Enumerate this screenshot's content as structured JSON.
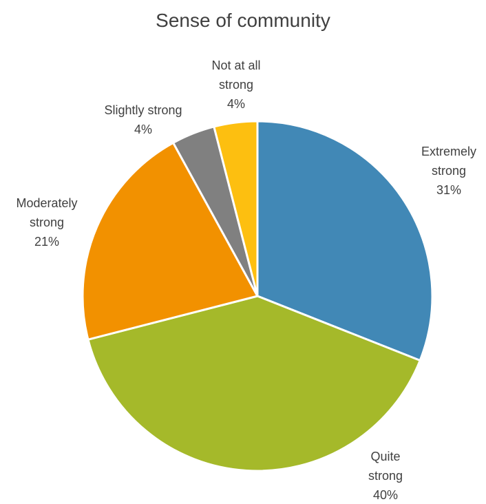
{
  "chart_data": {
    "type": "pie",
    "title": "Sense of community",
    "slices": [
      {
        "label_lines": [
          "Extremely",
          "strong",
          "31%"
        ],
        "value": 31,
        "color": "#4188B6"
      },
      {
        "label_lines": [
          "Quite",
          "strong",
          "40%"
        ],
        "value": 40,
        "color": "#A5B92A"
      },
      {
        "label_lines": [
          "Moderately",
          "strong",
          "21%"
        ],
        "value": 21,
        "color": "#F29100"
      },
      {
        "label_lines": [
          "Slightly strong",
          "4%"
        ],
        "value": 4,
        "color": "#808080"
      },
      {
        "label_lines": [
          "Not at all",
          "strong",
          "4%"
        ],
        "value": 4,
        "color": "#FDBF10"
      }
    ],
    "start": "12 o'clock",
    "direction": "clockwise",
    "legend": "none",
    "data_labels": "outside"
  }
}
